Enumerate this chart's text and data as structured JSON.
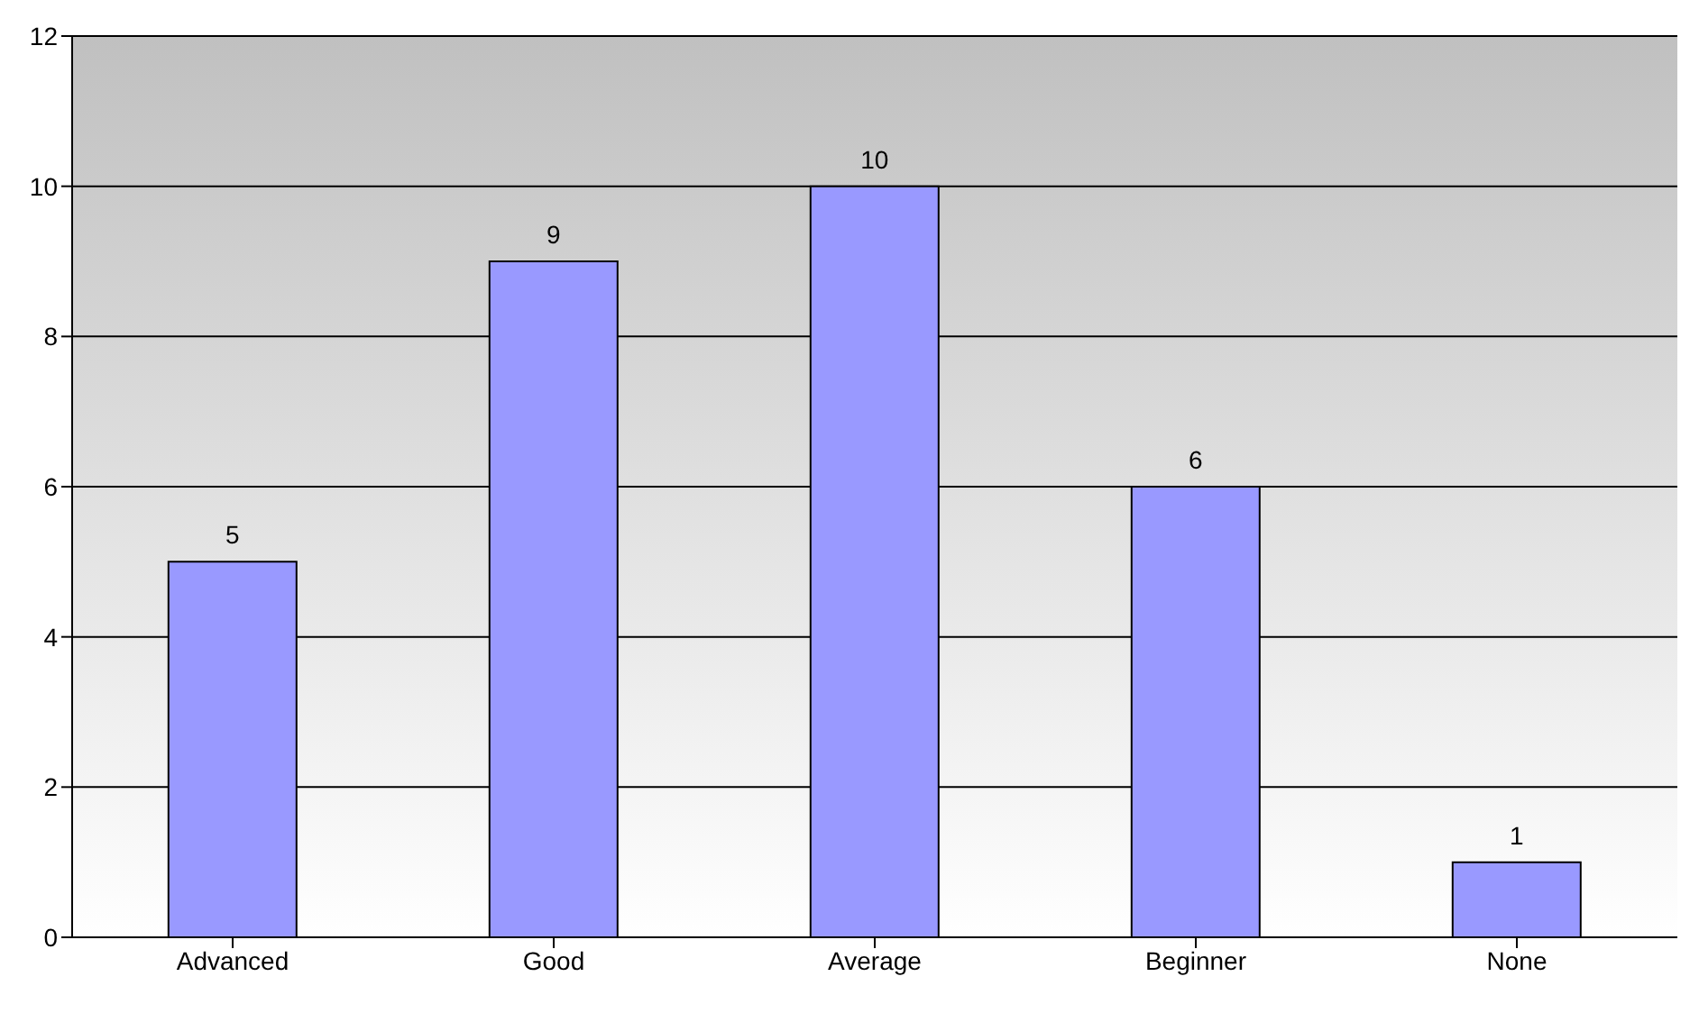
{
  "chart_data": {
    "type": "bar",
    "categories": [
      "Advanced",
      "Good",
      "Average",
      "Beginner",
      "None"
    ],
    "values": [
      5,
      9,
      10,
      6,
      1
    ],
    "color": "#9999ff",
    "ylim": [
      0,
      12
    ],
    "yticks": [
      0,
      2,
      4,
      6,
      8,
      10,
      12
    ],
    "grid": "y",
    "data_labels": true
  }
}
